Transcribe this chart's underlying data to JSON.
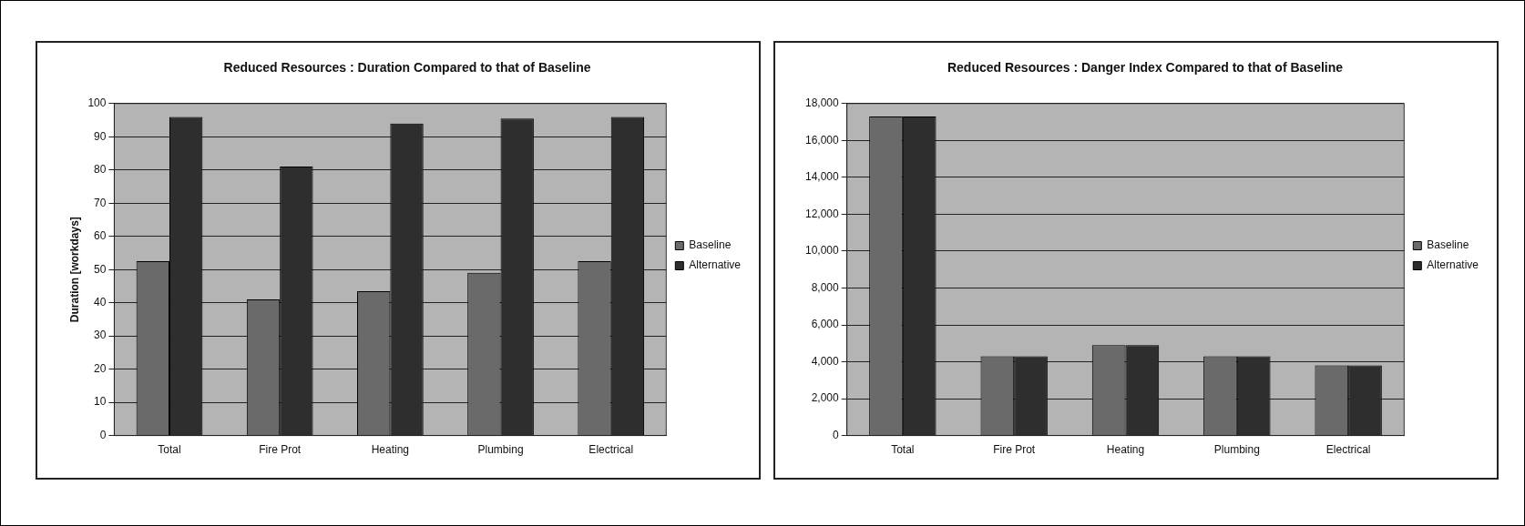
{
  "chart_data": [
    {
      "type": "bar",
      "title": "Reduced Resources : Duration Compared to that of Baseline",
      "ylabel": "Duration [workdays]",
      "categories": [
        "Total",
        "Fire Prot",
        "Heating",
        "Plumbing",
        "Electrical"
      ],
      "series": [
        {
          "name": "Baseline",
          "color": "#6a6a6a",
          "values": [
            52.5,
            41,
            43.5,
            49,
            52.5
          ]
        },
        {
          "name": "Alternative",
          "color": "#2e2e2e",
          "values": [
            96,
            81,
            94,
            95.5,
            96
          ]
        }
      ],
      "ylim": [
        0,
        100
      ],
      "yticks": [
        0,
        10,
        20,
        30,
        40,
        50,
        60,
        70,
        80,
        90,
        100
      ],
      "grid": "y",
      "legend": "right"
    },
    {
      "type": "bar",
      "title": "Reduced Resources : Danger Index Compared to that of Baseline",
      "categories": [
        "Total",
        "Fire Prot",
        "Heating",
        "Plumbing",
        "Electrical"
      ],
      "series": [
        {
          "name": "Baseline",
          "color": "#6a6a6a",
          "values": [
            17300,
            4300,
            4900,
            4300,
            3800
          ]
        },
        {
          "name": "Alternative",
          "color": "#2e2e2e",
          "values": [
            17300,
            4300,
            4900,
            4300,
            3800
          ]
        }
      ],
      "ylim": [
        0,
        18000
      ],
      "yticks": [
        {
          "value": 0,
          "label": "0"
        },
        {
          "value": 2000,
          "label": "2,000"
        },
        {
          "value": 4000,
          "label": "4,000"
        },
        {
          "value": 6000,
          "label": "6,000"
        },
        {
          "value": 8000,
          "label": "8,000"
        },
        {
          "value": 10000,
          "label": "10,000"
        },
        {
          "value": 12000,
          "label": "12,000"
        },
        {
          "value": 14000,
          "label": "14,000"
        },
        {
          "value": 16000,
          "label": "16,000"
        },
        {
          "value": 18000,
          "label": "18,000"
        }
      ],
      "grid": "y",
      "legend": "right"
    }
  ]
}
